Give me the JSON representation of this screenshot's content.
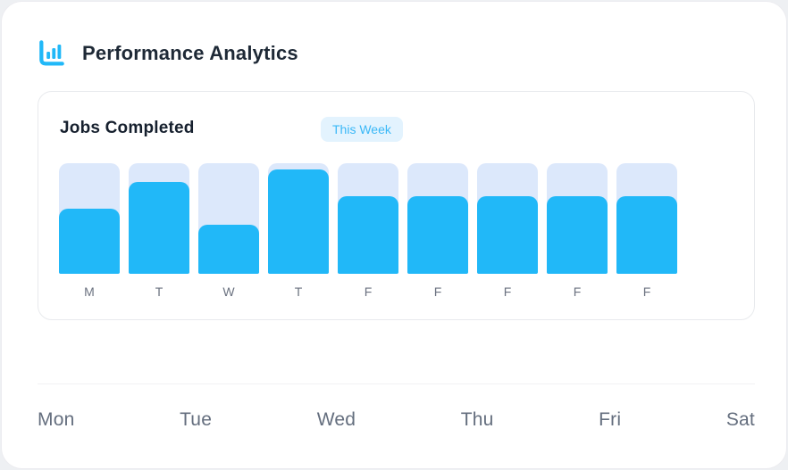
{
  "app": {
    "header": {
      "icon": "bar-chart-icon",
      "title": "Performance Analytics"
    },
    "analytics_card": {
      "title": "Jobs Completed",
      "badge_label": "This Week"
    },
    "week_row": {
      "days": [
        "Mon",
        "Tue",
        "Wed",
        "Thu",
        "Fri",
        "Sat"
      ]
    },
    "colors": {
      "accent_blue": "#21b8f8",
      "bar_track": "#dce8fb",
      "badge_bg": "#e3f3fe",
      "badge_text": "#3ab8f7",
      "heading_text": "#1e2936",
      "bar_letter_text": "#6b7280",
      "day_text": "#646e7e",
      "card_border": "#e8eaed",
      "divider": "#f1f1f3",
      "outer_bg": "#eef0f3"
    }
  },
  "chart_data": {
    "type": "bar",
    "title": "Jobs Completed",
    "period_label": "This Week",
    "categories": [
      "M",
      "T",
      "W",
      "T",
      "F",
      "F",
      "F",
      "F",
      "F"
    ],
    "values": [
      59,
      83,
      44,
      94,
      70,
      70,
      70,
      70,
      70
    ],
    "value_unit": "percent of track height (no numeric axis shown)",
    "ylim": [
      0,
      100
    ],
    "legend": false,
    "gridlines": false,
    "bar_color": "#21b8f8",
    "track_color": "#dce8fb"
  }
}
